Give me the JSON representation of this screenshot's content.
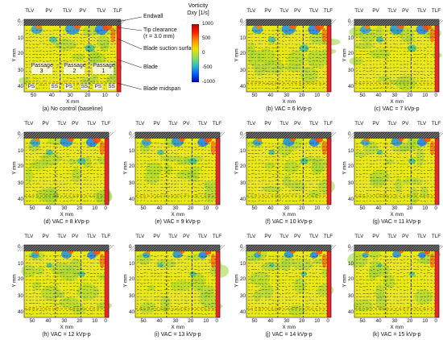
{
  "header_labels": [
    "TLV",
    "PV",
    "TLV",
    "PV",
    "TLV",
    "TLF"
  ],
  "x_ticks": [
    "50",
    "40",
    "30",
    "20",
    "10",
    "0"
  ],
  "y_ticks": [
    "0",
    "10",
    "20",
    "30",
    "40"
  ],
  "x_axis_label": "X mm",
  "y_axis_label": "Y mm",
  "panels": [
    {
      "id": "a",
      "caption": "(a) No control (baseline)"
    },
    {
      "id": "b",
      "caption": "(b) VAC = 6 kVp-p"
    },
    {
      "id": "c",
      "caption": "(c) VAC = 7 kVp-p"
    },
    {
      "id": "d",
      "caption": "(d) VAC = 8 kVp-p"
    },
    {
      "id": "e",
      "caption": "(e) VAC = 9 kVp-p"
    },
    {
      "id": "f",
      "caption": "(f) VAC = 10 kVp-p"
    },
    {
      "id": "g",
      "caption": "(g) VAC = 11 kVp-p"
    },
    {
      "id": "h",
      "caption": "(h) VAC = 12 kVp-p"
    },
    {
      "id": "i",
      "caption": "(i) VAC = 13 kVp-p"
    },
    {
      "id": "j",
      "caption": "(j) VAC = 14 kVp-p"
    },
    {
      "id": "k",
      "caption": "(k) VAC = 15 kVp-p"
    }
  ],
  "baseline_labels": {
    "passages": [
      "Passage 3",
      "Passage 2",
      "Passage 1"
    ],
    "surfaces": [
      "PS",
      "SS",
      "PS",
      "SS",
      "PS",
      "SS"
    ]
  },
  "annotations": {
    "endwall": "Endwall",
    "tip_clearance": "Tip clearance",
    "tip_clearance_value": "(τ = 3.0 mm)",
    "blade_suction_surface": "Blade suction surface",
    "blade": "Blade",
    "blade_midspan": "Blade midspan"
  },
  "colorbar": {
    "title": "Vorticity",
    "symbol": "Ωxy [1/s]",
    "ticks": [
      "1000",
      "500",
      "0",
      "-500",
      "-1000"
    ],
    "colors": [
      "#b00000",
      "#ff2000",
      "#ff9000",
      "#f0e000",
      "#90e050",
      "#30c0c0",
      "#0060ff",
      "#0000b0"
    ]
  }
}
